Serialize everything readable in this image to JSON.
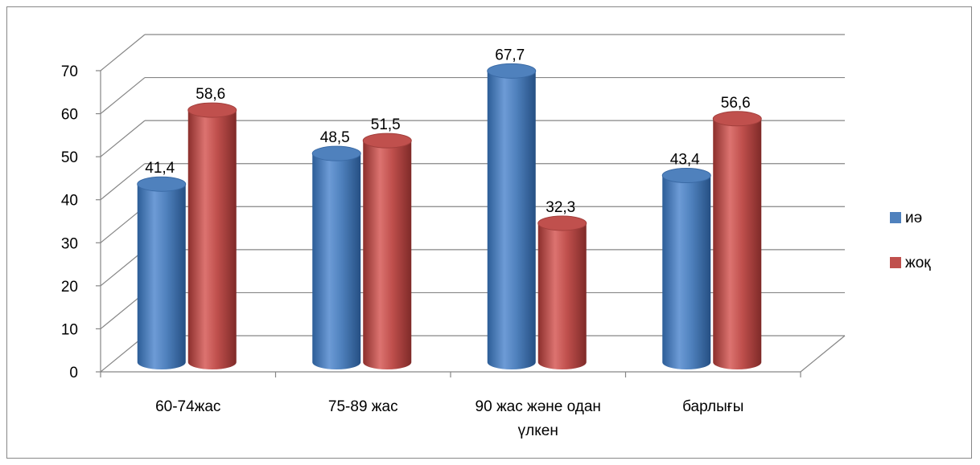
{
  "chart_data": {
    "type": "bar",
    "categories": [
      "60-74жас",
      "75-89 жас",
      "90 жас және одан үлкен",
      "барлығы"
    ],
    "category_lines": [
      [
        "60-74жас"
      ],
      [
        "75-89 жас"
      ],
      [
        "90 жас және одан",
        "үлкен"
      ],
      [
        "барлығы"
      ]
    ],
    "series": [
      {
        "name": "иә",
        "values": [
          41.4,
          48.5,
          67.7,
          43.4
        ],
        "labels": [
          "41,4",
          "48,5",
          "67,7",
          "43,4"
        ],
        "color": "#4F81BD"
      },
      {
        "name": "жоқ",
        "values": [
          58.6,
          51.5,
          32.3,
          56.6
        ],
        "labels": [
          "58,6",
          "51,5",
          "32,3",
          "56,6"
        ],
        "color": "#C0504D"
      }
    ],
    "y_ticks": [
      "0",
      "10",
      "20",
      "30",
      "40",
      "50",
      "60",
      "70"
    ],
    "ylim": [
      0,
      70
    ],
    "title": "",
    "xlabel": "",
    "ylabel": "",
    "grid": true,
    "legend_position": "right",
    "style": "3d-cylinder"
  }
}
